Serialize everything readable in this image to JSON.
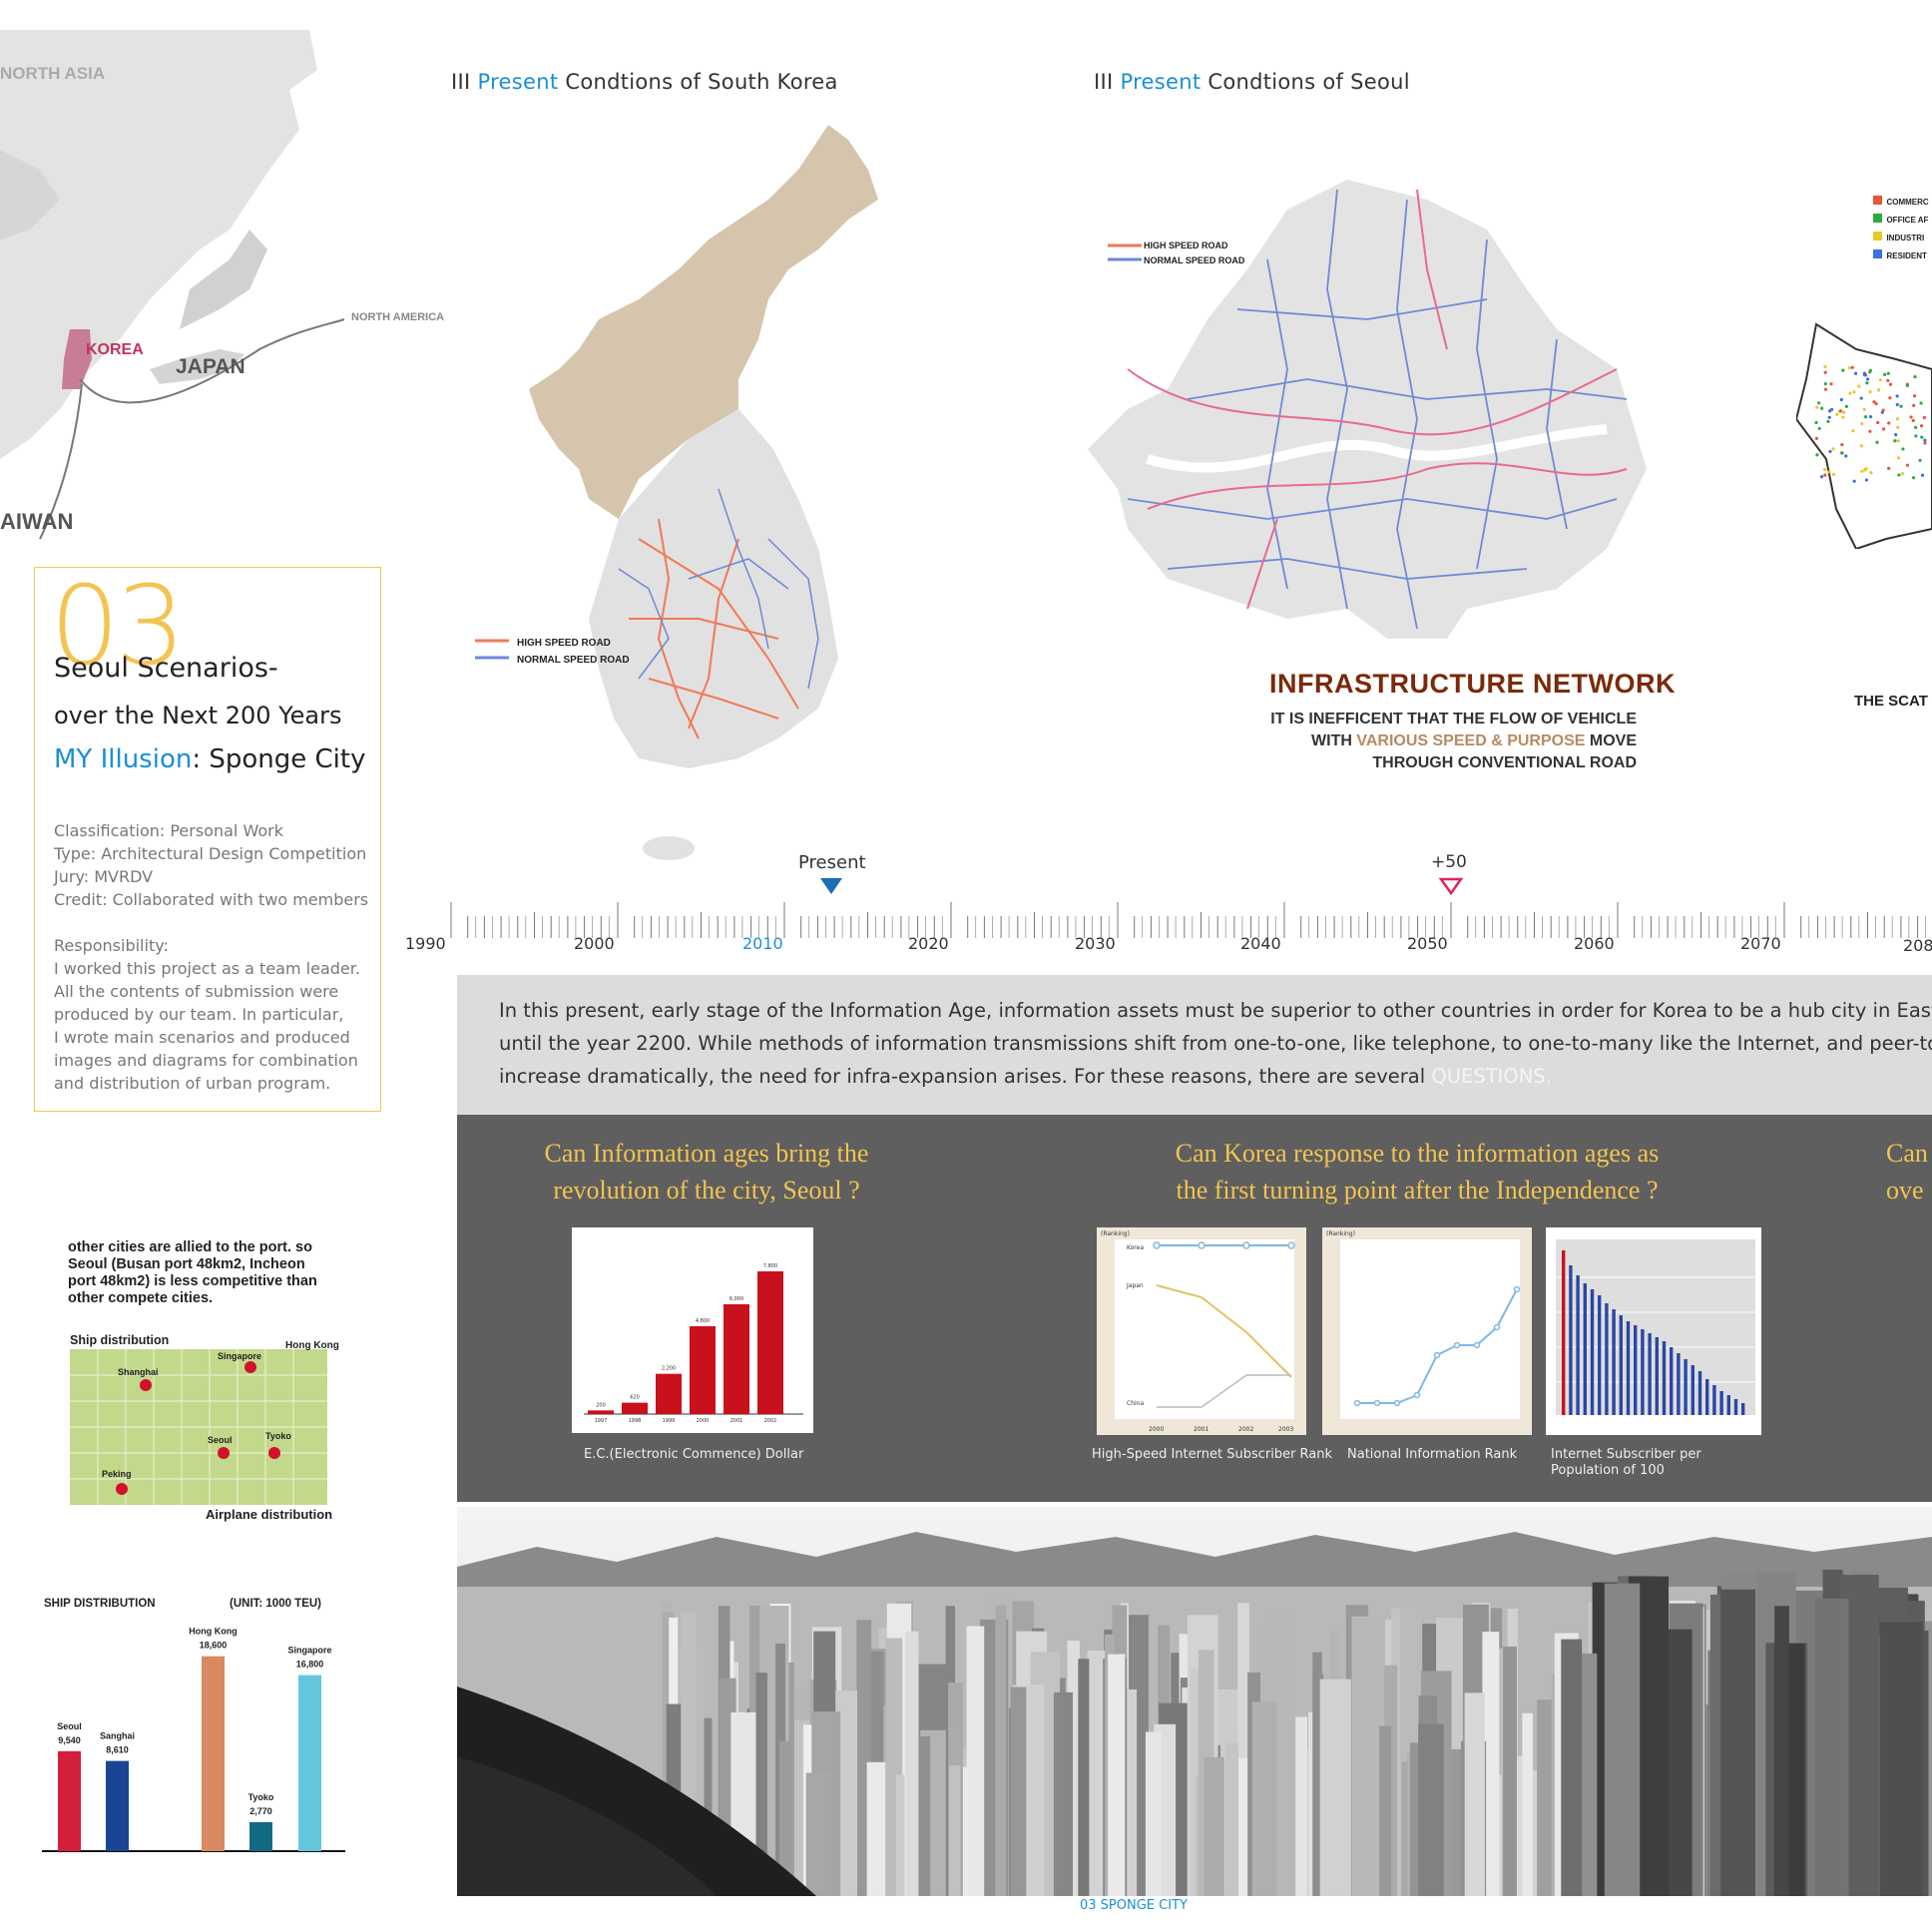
{
  "map_region": {
    "north_asia": "NORTH ASIA",
    "korea": "KOREA",
    "japan": "JAPAN",
    "north_america": "NORTH AMERICA",
    "taiwan": "AIWAN"
  },
  "south_korea_section": {
    "prefix": "III ",
    "highlight": "Present",
    "title_rest": " Condtions of South Korea",
    "legend": [
      "HIGH SPEED ROAD",
      "NORMAL SPEED ROAD"
    ]
  },
  "seoul_section": {
    "prefix": "III ",
    "highlight": "Present",
    "title_rest": " Condtions of Seoul",
    "legend": [
      "HIGH SPEED ROAD",
      "NORMAL SPEED ROAD"
    ],
    "heading": "INFRASTRUCTURE NETWORK",
    "desc_line1": "IT IS INEFFICENT THAT THE FLOW OF VEHICLE",
    "desc_line2_a": "WITH ",
    "desc_line2_b": "VARIOUS SPEED & PURPOSE",
    "desc_line2_c": " MOVE",
    "desc_line3": "THROUGH CONVENTIONAL ROAD"
  },
  "scatter_section": {
    "legend": [
      "COMMERC",
      "OFFICE AF",
      "INDUSTRI",
      "RESIDENT"
    ],
    "legend_colors": [
      "#e8553a",
      "#2eaa3c",
      "#e7c92c",
      "#3c6fe0"
    ],
    "caption": "THE SCAT"
  },
  "project_card": {
    "number": "03",
    "title_line1": "Seoul Scenarios-",
    "title_line2": "over the Next 200 Years",
    "illusion_highlight": "MY Illusion",
    "illusion_rest": ": Sponge City",
    "classification": "Classification: Personal Work",
    "type": "Type: Architectural Design Competition",
    "jury": "Jury: MVRDV",
    "credit": "Credit: Collaborated with two members",
    "responsibility_label": "Responsibility:",
    "responsibility_lines": [
      "I worked this project as a team leader.",
      "All the contents of submission were",
      "produced by our team. In particular,",
      "I wrote main scenarios and produced",
      "images and diagrams for combination",
      "and distribution of urban program."
    ]
  },
  "timeline": {
    "present_label": "Present",
    "future_label": "+50",
    "years": [
      "1990",
      "2000",
      "2010",
      "2020",
      "2030",
      "2040",
      "2050",
      "2060",
      "2070",
      "208"
    ]
  },
  "intro": {
    "line1": "In this present, early stage of the Information Age, information assets must be superior to other countries in order for Korea to be a hub city in East Asia",
    "line2": "until the year 2200. While methods of information transmissions shift from one-to-one, like telephone, to one-to-many like the Internet, and peer-to-",
    "line3": "increase dramatically, the need for infra-expansion arises. For these reasons, there are several ",
    "line3_highlight": "QUESTIONS."
  },
  "questions": {
    "q1_line1": "Can Information ages bring the",
    "q1_line2": "revolution of the city, Seoul ?",
    "q2_line1": "Can Korea response to the information ages as",
    "q2_line2": "the first turning point after the Independence ?",
    "q3_line1": "Can",
    "q3_line2": "ove"
  },
  "charts": {
    "ec_caption": "E.C.(Electronic Commence) Dollar",
    "highspeed_caption": "High-Speed Internet Subscriber Rank",
    "national_caption": "National Information Rank",
    "subscriber_caption": "Internet Subscriber per Population of 100",
    "highspeed_ylabel": "(Ranking)",
    "highspeed_series": [
      "Korea",
      "Japan",
      "China"
    ],
    "highspeed_years": [
      "2000",
      "2001",
      "2002",
      "2003"
    ],
    "national_ylabel": "(Ranking)"
  },
  "side_info": {
    "port_text_1": "other cities are allied to the port.   so",
    "port_text_2": "Seoul (Busan port 48km2, Incheon",
    "port_text_3": "port 48km2) is less competitive  than",
    "port_text_4": "other compete cities.",
    "ship_dist_label": "Ship distribution",
    "airplane_label": "Airplane distribution",
    "cities": [
      "Hong Kong",
      "Singapore",
      "Shanghai",
      "Seoul",
      "Tyoko",
      "Peking"
    ]
  },
  "chart_data": [
    {
      "type": "bar",
      "title": "SHIP DISTRIBUTION",
      "unit": "(UNIT: 1000 TEU)",
      "categories": [
        "Seoul",
        "Sanghai",
        "Hong Kong",
        "Tyoko",
        "Singapore"
      ],
      "values": [
        9540,
        8610,
        18600,
        2770,
        16800
      ],
      "value_labels": [
        "9,540",
        "8,610",
        "18,600",
        "2,770",
        "16,800"
      ],
      "colors": [
        "#d41f3c",
        "#1a4594",
        "#d9895f",
        "#136b83",
        "#63c6dc"
      ],
      "ylim": [
        0,
        20000
      ]
    },
    {
      "type": "bar",
      "title": "",
      "categories": [
        "1997",
        "1998",
        "1999",
        "2000",
        "2001",
        "2002"
      ],
      "values": [
        200,
        620,
        2200,
        4800,
        6000,
        7800
      ],
      "value_labels": [
        "200",
        "620",
        "2,200",
        "4,800",
        "6,000",
        "7,800"
      ],
      "ylim": [
        0,
        9000
      ]
    }
  ],
  "footer": "03 SPONGE CITY"
}
